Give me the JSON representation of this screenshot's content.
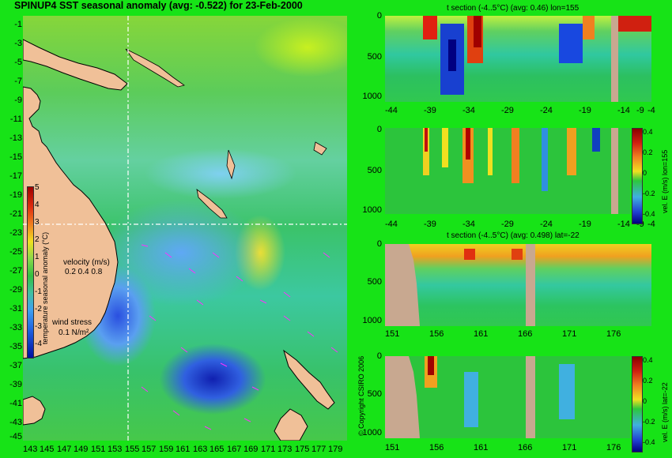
{
  "map": {
    "title": "SPINUP4 SST seasonal anomaly (avg: -0.522) for 23-Feb-2000",
    "lat_labels": [
      "-1",
      "-3",
      "-5",
      "-7",
      "-9",
      "-11",
      "-13",
      "-15",
      "-17",
      "-19",
      "-21",
      "-23",
      "-25",
      "-27",
      "-29",
      "-31",
      "-33",
      "-35",
      "-37",
      "-39",
      "-41",
      "-43",
      "-45"
    ],
    "lon_labels": [
      "143",
      "145",
      "147",
      "149",
      "151",
      "153",
      "155",
      "157",
      "159",
      "161",
      "163",
      "165",
      "167",
      "169",
      "171",
      "173",
      "175",
      "177",
      "179"
    ],
    "colorbar": {
      "label": "temperature seasonal anomaly (°C)",
      "ticks": [
        "5",
        "4",
        "3",
        "2",
        "1",
        "0",
        "-1",
        "-2",
        "-3",
        "-4"
      ]
    },
    "velocity_legend": {
      "title": "velocity (m/s)",
      "values": "0.2 0.4 0.8"
    },
    "wind_legend": {
      "title": "wind stress",
      "value": "0.1 N/m²"
    },
    "copyright": "© Copyright CSIRO 2006"
  },
  "panels": [
    {
      "id": "panel1",
      "title": "t section (-4..5°C) (avg: 0.46) lon=155",
      "x_ticks": [
        "-44",
        "-39",
        "-34",
        "-29",
        "-24",
        "-19",
        "-14",
        "-9",
        "-4"
      ],
      "y_ticks": [
        "0",
        "500",
        "1000"
      ]
    },
    {
      "id": "panel2",
      "title": "",
      "x_ticks": [
        "-44",
        "-39",
        "-34",
        "-29",
        "-24",
        "-19",
        "-14",
        "-9",
        "-4"
      ],
      "y_ticks": [
        "0",
        "500",
        "1000"
      ],
      "side_label": "vel. E (m/s) lon=155",
      "cbar_ticks": [
        "0.4",
        "0.2",
        "0",
        "-0.2",
        "-0.4"
      ]
    },
    {
      "id": "panel3",
      "title": "t section (-4..5°C) (avg: 0.498) lat=-22",
      "x_ticks": [
        "151",
        "156",
        "161",
        "166",
        "171",
        "176"
      ],
      "y_ticks": [
        "0",
        "500",
        "1000"
      ]
    },
    {
      "id": "panel4",
      "title": "",
      "x_ticks": [
        "151",
        "156",
        "161",
        "166",
        "171",
        "176"
      ],
      "y_ticks": [
        "0",
        "500",
        "1000"
      ],
      "side_label": "vel. E (m/s) lat=-22",
      "cbar_ticks": [
        "0.4",
        "0.2",
        "0",
        "-0.2",
        "-0.4"
      ]
    }
  ]
}
